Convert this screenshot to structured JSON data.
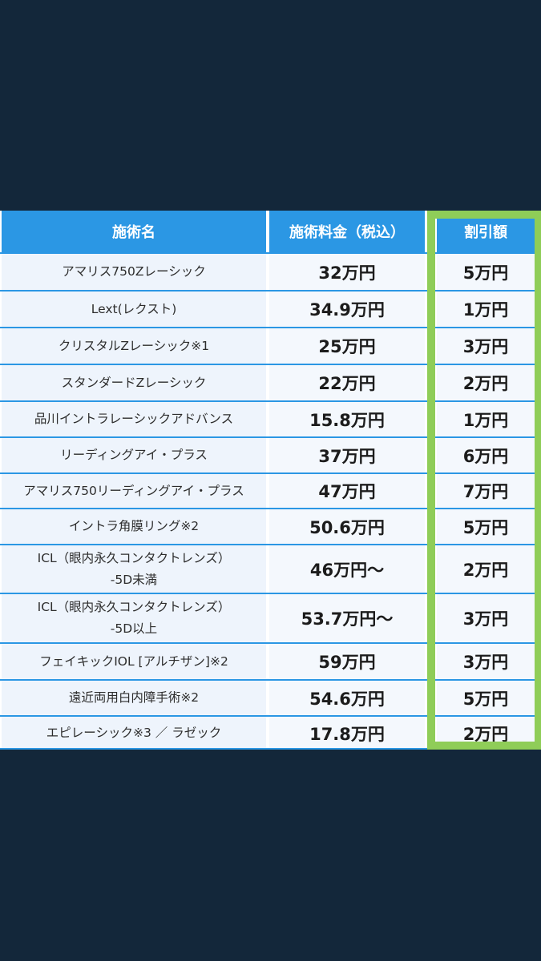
{
  "table": {
    "headers": [
      "施術名",
      "施術料金（税込）",
      "割引額"
    ],
    "rows": [
      {
        "name": [
          "アマリス750Zレーシック"
        ],
        "price": "32万円",
        "discount": "5万円"
      },
      {
        "name": [
          "Lext(レクスト)"
        ],
        "price": "34.9万円",
        "discount": "1万円"
      },
      {
        "name": [
          "クリスタルZレーシック※1"
        ],
        "price": "25万円",
        "discount": "3万円"
      },
      {
        "name": [
          "スタンダードZレーシック"
        ],
        "price": "22万円",
        "discount": "2万円"
      },
      {
        "name": [
          "品川イントラレーシックアドバンス"
        ],
        "price": "15.8万円",
        "discount": "1万円"
      },
      {
        "name": [
          "リーディングアイ・プラス"
        ],
        "price": "37万円",
        "discount": "6万円"
      },
      {
        "name": [
          "アマリス750リーディングアイ・プラス"
        ],
        "price": "47万円",
        "discount": "7万円"
      },
      {
        "name": [
          "イントラ角膜リング※2"
        ],
        "price": "50.6万円",
        "discount": "5万円"
      },
      {
        "name": [
          "ICL（眼内永久コンタクトレンズ）",
          "-5D未満"
        ],
        "price": "46万円〜",
        "discount": "2万円"
      },
      {
        "name": [
          "ICL（眼内永久コンタクトレンズ）",
          "-5D以上"
        ],
        "price": "53.7万円〜",
        "discount": "3万円"
      },
      {
        "name": [
          "フェイキックIOL [アルチザン]※2"
        ],
        "price": "59万円",
        "discount": "3万円"
      },
      {
        "name": [
          "遠近両用白内障手術※2"
        ],
        "price": "54.6万円",
        "discount": "5万円"
      },
      {
        "name": [
          "エピレーシック※3 ／ ラゼック"
        ],
        "price": "17.8万円",
        "discount": "2万円"
      }
    ]
  },
  "colors": {
    "background": "#13273a",
    "header": "#2b97e4",
    "highlight_frame": "#8fcd58"
  }
}
